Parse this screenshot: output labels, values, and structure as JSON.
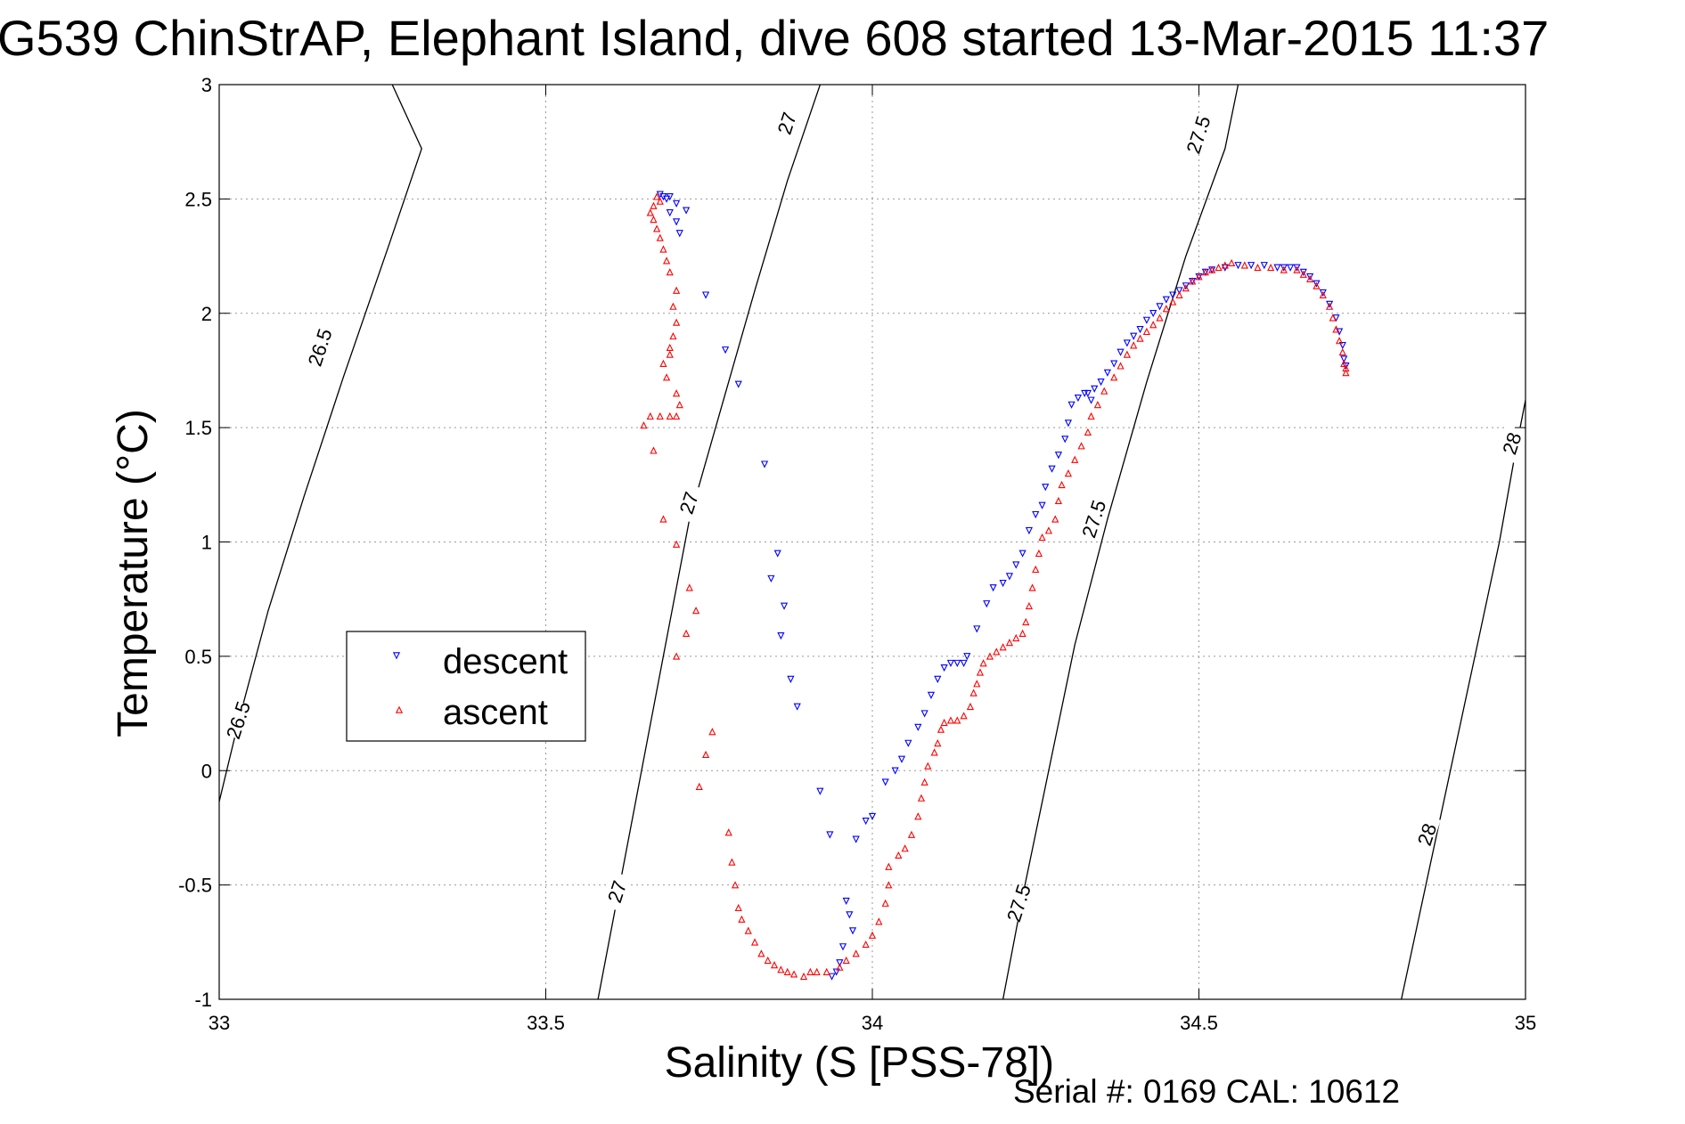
{
  "chart_data": {
    "type": "scatter",
    "title": "G539 ChinStrAP, Elephant Island, dive 608 started 13-Mar-2015 11:37",
    "xlabel": "Salinity (S [PSS-78])",
    "ylabel": "Temperature (°C)",
    "xlim": [
      33,
      35
    ],
    "ylim": [
      -1,
      3
    ],
    "x_ticks": [
      "33",
      "33.5",
      "34",
      "34.5",
      "35"
    ],
    "y_ticks": [
      "-1",
      "-0.5",
      "0",
      "0.5",
      "1",
      "1.5",
      "2",
      "2.5",
      "3"
    ],
    "grid": true,
    "legend_position": "middle-left",
    "footer": "Serial #: 0169 CAL: 10612",
    "colors": {
      "descent": "#0000ff",
      "ascent": "#ff0000",
      "isopycnal": "#000000"
    },
    "isopycnals": [
      {
        "label": "26.5",
        "points": [
          [
            32.998,
            -0.16
          ],
          [
            33.03,
            0.22
          ],
          [
            33.075,
            0.7
          ],
          [
            33.13,
            1.2
          ],
          [
            33.19,
            1.72
          ],
          [
            33.26,
            2.3
          ],
          [
            33.31,
            2.72
          ],
          [
            33.265,
            3.0
          ],
          [
            33.265,
            3.0
          ]
        ],
        "label_positions": [
          [
            33.03,
            0.22
          ],
          [
            33.155,
            1.85
          ]
        ]
      },
      {
        "label": "27",
        "points": [
          [
            33.58,
            -1.0
          ],
          [
            33.61,
            -0.55
          ],
          [
            33.64,
            -0.1
          ],
          [
            33.68,
            0.5
          ],
          [
            33.72,
            1.1
          ],
          [
            33.77,
            1.6
          ],
          [
            33.82,
            2.1
          ],
          [
            33.87,
            2.58
          ],
          [
            33.92,
            3.0
          ]
        ],
        "label_positions": [
          [
            33.61,
            -0.53
          ],
          [
            33.72,
            1.17
          ],
          [
            33.87,
            2.83
          ]
        ]
      },
      {
        "label": "27.5",
        "points": [
          [
            34.2,
            -1.0
          ],
          [
            34.23,
            -0.55
          ],
          [
            34.27,
            0.0
          ],
          [
            34.31,
            0.55
          ],
          [
            34.36,
            1.1
          ],
          [
            34.42,
            1.7
          ],
          [
            34.48,
            2.25
          ],
          [
            34.54,
            2.72
          ],
          [
            34.56,
            3.0
          ]
        ],
        "label_positions": [
          [
            34.225,
            -0.58
          ],
          [
            34.34,
            1.1
          ],
          [
            34.5,
            2.78
          ]
        ]
      },
      {
        "label": "28",
        "points": [
          [
            34.81,
            -1.0
          ],
          [
            34.84,
            -0.6
          ],
          [
            34.87,
            -0.2
          ],
          [
            34.9,
            0.2
          ],
          [
            34.93,
            0.6
          ],
          [
            34.96,
            1.0
          ],
          [
            34.985,
            1.4
          ],
          [
            35.0,
            1.62
          ]
        ],
        "label_positions": [
          [
            34.85,
            -0.28
          ],
          [
            34.98,
            1.43
          ]
        ]
      }
    ],
    "series": [
      {
        "name": "descent",
        "marker": "triangle-down",
        "points": [
          [
            33.675,
            2.52
          ],
          [
            33.68,
            2.51
          ],
          [
            33.69,
            2.51
          ],
          [
            33.685,
            2.5
          ],
          [
            33.7,
            2.48
          ],
          [
            33.715,
            2.45
          ],
          [
            33.69,
            2.44
          ],
          [
            33.7,
            2.4
          ],
          [
            33.705,
            2.35
          ],
          [
            33.745,
            2.08
          ],
          [
            33.775,
            1.84
          ],
          [
            33.795,
            1.69
          ],
          [
            33.835,
            1.34
          ],
          [
            33.855,
            0.95
          ],
          [
            33.845,
            0.84
          ],
          [
            33.865,
            0.72
          ],
          [
            33.86,
            0.59
          ],
          [
            33.875,
            0.4
          ],
          [
            33.885,
            0.28
          ],
          [
            33.92,
            -0.09
          ],
          [
            33.935,
            -0.28
          ],
          [
            33.975,
            -0.3
          ],
          [
            33.99,
            -0.22
          ],
          [
            34.0,
            -0.2
          ],
          [
            33.96,
            -0.57
          ],
          [
            33.965,
            -0.63
          ],
          [
            33.97,
            -0.7
          ],
          [
            33.955,
            -0.77
          ],
          [
            33.95,
            -0.84
          ],
          [
            33.945,
            -0.88
          ],
          [
            33.938,
            -0.9
          ],
          [
            34.02,
            -0.05
          ],
          [
            34.035,
            0.0
          ],
          [
            34.045,
            0.05
          ],
          [
            34.055,
            0.12
          ],
          [
            34.07,
            0.19
          ],
          [
            34.08,
            0.25
          ],
          [
            34.09,
            0.33
          ],
          [
            34.1,
            0.4
          ],
          [
            34.11,
            0.45
          ],
          [
            34.12,
            0.47
          ],
          [
            34.13,
            0.47
          ],
          [
            34.14,
            0.47
          ],
          [
            34.145,
            0.5
          ],
          [
            34.16,
            0.62
          ],
          [
            34.175,
            0.73
          ],
          [
            34.185,
            0.8
          ],
          [
            34.2,
            0.82
          ],
          [
            34.21,
            0.85
          ],
          [
            34.22,
            0.9
          ],
          [
            34.23,
            0.95
          ],
          [
            34.24,
            1.05
          ],
          [
            34.25,
            1.12
          ],
          [
            34.26,
            1.16
          ],
          [
            34.265,
            1.24
          ],
          [
            34.275,
            1.32
          ],
          [
            34.285,
            1.38
          ],
          [
            34.295,
            1.45
          ],
          [
            34.3,
            1.52
          ],
          [
            34.305,
            1.6
          ],
          [
            34.315,
            1.63
          ],
          [
            34.325,
            1.65
          ],
          [
            34.33,
            1.65
          ],
          [
            34.335,
            1.62
          ],
          [
            34.34,
            1.67
          ],
          [
            34.35,
            1.7
          ],
          [
            34.36,
            1.74
          ],
          [
            34.37,
            1.78
          ],
          [
            34.38,
            1.83
          ],
          [
            34.39,
            1.87
          ],
          [
            34.4,
            1.9
          ],
          [
            34.41,
            1.93
          ],
          [
            34.42,
            1.97
          ],
          [
            34.43,
            2.0
          ],
          [
            34.44,
            2.03
          ],
          [
            34.45,
            2.06
          ],
          [
            34.46,
            2.08
          ],
          [
            34.47,
            2.1
          ],
          [
            34.48,
            2.12
          ],
          [
            34.49,
            2.14
          ],
          [
            34.5,
            2.16
          ],
          [
            34.51,
            2.18
          ],
          [
            34.52,
            2.19
          ],
          [
            34.54,
            2.2
          ],
          [
            34.56,
            2.21
          ],
          [
            34.58,
            2.21
          ],
          [
            34.6,
            2.21
          ],
          [
            34.62,
            2.2
          ],
          [
            34.63,
            2.2
          ],
          [
            34.64,
            2.2
          ],
          [
            34.65,
            2.2
          ],
          [
            34.66,
            2.18
          ],
          [
            34.67,
            2.16
          ],
          [
            34.68,
            2.13
          ],
          [
            34.69,
            2.09
          ],
          [
            34.7,
            2.04
          ],
          [
            34.71,
            1.98
          ],
          [
            34.715,
            1.92
          ],
          [
            34.72,
            1.86
          ],
          [
            34.722,
            1.8
          ],
          [
            34.725,
            1.77
          ]
        ]
      },
      {
        "name": "ascent",
        "marker": "triangle-up",
        "points": [
          [
            33.67,
            2.51
          ],
          [
            33.675,
            2.49
          ],
          [
            33.665,
            2.47
          ],
          [
            33.66,
            2.44
          ],
          [
            33.665,
            2.41
          ],
          [
            33.67,
            2.37
          ],
          [
            33.675,
            2.33
          ],
          [
            33.68,
            2.28
          ],
          [
            33.685,
            2.23
          ],
          [
            33.69,
            2.18
          ],
          [
            33.7,
            2.1
          ],
          [
            33.695,
            2.03
          ],
          [
            33.7,
            1.96
          ],
          [
            33.695,
            1.9
          ],
          [
            33.69,
            1.85
          ],
          [
            33.69,
            1.82
          ],
          [
            33.68,
            1.78
          ],
          [
            33.685,
            1.72
          ],
          [
            33.7,
            1.65
          ],
          [
            33.705,
            1.6
          ],
          [
            33.7,
            1.55
          ],
          [
            33.69,
            1.55
          ],
          [
            33.675,
            1.55
          ],
          [
            33.66,
            1.55
          ],
          [
            33.65,
            1.51
          ],
          [
            33.665,
            1.4
          ],
          [
            33.68,
            1.1
          ],
          [
            33.7,
            0.99
          ],
          [
            33.72,
            0.8
          ],
          [
            33.73,
            0.7
          ],
          [
            33.715,
            0.6
          ],
          [
            33.7,
            0.5
          ],
          [
            33.755,
            0.17
          ],
          [
            33.745,
            0.07
          ],
          [
            33.735,
            -0.07
          ],
          [
            33.78,
            -0.27
          ],
          [
            33.785,
            -0.4
          ],
          [
            33.79,
            -0.5
          ],
          [
            33.795,
            -0.6
          ],
          [
            33.8,
            -0.65
          ],
          [
            33.81,
            -0.7
          ],
          [
            33.82,
            -0.75
          ],
          [
            33.83,
            -0.8
          ],
          [
            33.84,
            -0.83
          ],
          [
            33.85,
            -0.85
          ],
          [
            33.86,
            -0.87
          ],
          [
            33.87,
            -0.88
          ],
          [
            33.88,
            -0.89
          ],
          [
            33.895,
            -0.9
          ],
          [
            33.905,
            -0.88
          ],
          [
            33.915,
            -0.88
          ],
          [
            33.93,
            -0.88
          ],
          [
            33.95,
            -0.86
          ],
          [
            33.96,
            -0.83
          ],
          [
            33.975,
            -0.8
          ],
          [
            33.99,
            -0.76
          ],
          [
            34.0,
            -0.72
          ],
          [
            34.01,
            -0.66
          ],
          [
            34.02,
            -0.58
          ],
          [
            34.025,
            -0.5
          ],
          [
            34.025,
            -0.42
          ],
          [
            34.04,
            -0.37
          ],
          [
            34.05,
            -0.34
          ],
          [
            34.06,
            -0.28
          ],
          [
            34.07,
            -0.2
          ],
          [
            34.075,
            -0.12
          ],
          [
            34.08,
            -0.05
          ],
          [
            34.085,
            0.02
          ],
          [
            34.095,
            0.08
          ],
          [
            34.1,
            0.12
          ],
          [
            34.105,
            0.18
          ],
          [
            34.11,
            0.21
          ],
          [
            34.12,
            0.22
          ],
          [
            34.13,
            0.22
          ],
          [
            34.14,
            0.24
          ],
          [
            34.15,
            0.28
          ],
          [
            34.155,
            0.34
          ],
          [
            34.16,
            0.38
          ],
          [
            34.165,
            0.43
          ],
          [
            34.17,
            0.47
          ],
          [
            34.18,
            0.5
          ],
          [
            34.19,
            0.52
          ],
          [
            34.2,
            0.54
          ],
          [
            34.21,
            0.56
          ],
          [
            34.22,
            0.58
          ],
          [
            34.23,
            0.6
          ],
          [
            34.235,
            0.65
          ],
          [
            34.24,
            0.72
          ],
          [
            34.245,
            0.8
          ],
          [
            34.25,
            0.88
          ],
          [
            34.255,
            0.95
          ],
          [
            34.26,
            1.02
          ],
          [
            34.27,
            1.05
          ],
          [
            34.28,
            1.1
          ],
          [
            34.285,
            1.18
          ],
          [
            34.29,
            1.25
          ],
          [
            34.3,
            1.3
          ],
          [
            34.31,
            1.36
          ],
          [
            34.32,
            1.42
          ],
          [
            34.33,
            1.48
          ],
          [
            34.335,
            1.55
          ],
          [
            34.345,
            1.6
          ],
          [
            34.355,
            1.66
          ],
          [
            34.37,
            1.72
          ],
          [
            34.38,
            1.77
          ],
          [
            34.39,
            1.82
          ],
          [
            34.4,
            1.86
          ],
          [
            34.41,
            1.89
          ],
          [
            34.42,
            1.92
          ],
          [
            34.43,
            1.95
          ],
          [
            34.44,
            1.98
          ],
          [
            34.45,
            2.02
          ],
          [
            34.46,
            2.05
          ],
          [
            34.47,
            2.08
          ],
          [
            34.48,
            2.11
          ],
          [
            34.49,
            2.14
          ],
          [
            34.5,
            2.16
          ],
          [
            34.51,
            2.18
          ],
          [
            34.52,
            2.19
          ],
          [
            34.53,
            2.2
          ],
          [
            34.54,
            2.21
          ],
          [
            34.55,
            2.22
          ],
          [
            34.57,
            2.21
          ],
          [
            34.59,
            2.2
          ],
          [
            34.61,
            2.2
          ],
          [
            34.63,
            2.19
          ],
          [
            34.65,
            2.19
          ],
          [
            34.66,
            2.17
          ],
          [
            34.67,
            2.15
          ],
          [
            34.68,
            2.12
          ],
          [
            34.69,
            2.08
          ],
          [
            34.7,
            2.03
          ],
          [
            34.705,
            1.98
          ],
          [
            34.71,
            1.93
          ],
          [
            34.715,
            1.88
          ],
          [
            34.72,
            1.83
          ],
          [
            34.722,
            1.78
          ],
          [
            34.725,
            1.76
          ],
          [
            34.725,
            1.74
          ]
        ]
      }
    ]
  }
}
